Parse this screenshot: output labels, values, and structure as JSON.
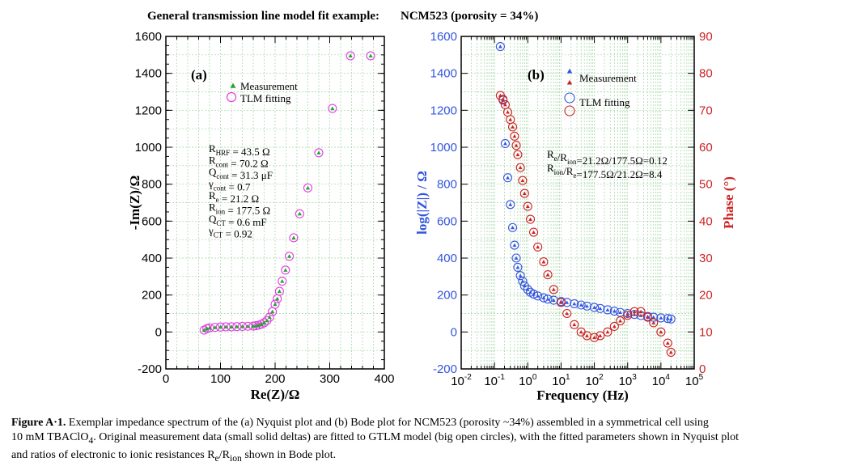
{
  "figure": {
    "title": "General transmission line model fit example:",
    "title_sample": "NCM523 (porosity = 34%)"
  },
  "caption": {
    "label": "Figure A·1.",
    "line1": "Exemplar impedance spectrum of the (a) Nyquist plot and (b) Bode plot for NCM523 (porosity ~34%) assembled in a symmetrical cell using",
    "line2a": "10 mM TBAClO",
    "line2sub": "4",
    "line2b": ". Original measurement data (small solid deltas) are fitted to GTLM model (big open circles), with the fitted parameters shown in Nyquist plot",
    "line3": "and ratios of electronic to ionic resistances R",
    "line3sub1": "e",
    "line3mid": "/R",
    "line3sub2": "ion",
    "line3end": " shown in Bode plot."
  },
  "colors": {
    "measurement_a": "#2e9e3a",
    "fit_a": "#e040e0",
    "impedance": "#3355dd",
    "phase": "#cc2222",
    "grid": "#9ed39e"
  },
  "chart_data": [
    {
      "type": "scatter",
      "panel": "(a)",
      "xlabel": "Re(Z)/Ω",
      "ylabel": "-Im(Z)/Ω",
      "xlim": [
        0,
        400
      ],
      "ylim": [
        -200,
        1600
      ],
      "xticks": [
        "0",
        "100",
        "200",
        "300",
        "400"
      ],
      "yticks": [
        "-200",
        "0",
        "200",
        "400",
        "600",
        "800",
        "1000",
        "1200",
        "1400",
        "1600"
      ],
      "grid": true,
      "legend": [
        "Measurement",
        "TLM fitting"
      ],
      "legend_position": "top-center",
      "parameters": [
        {
          "name": "R",
          "sub": "HRF",
          "value": "= 43.5 Ω"
        },
        {
          "name": "R",
          "sub": "cont",
          "value": "= 70.2 Ω"
        },
        {
          "name": "Q",
          "sub": "cont",
          "value": "= 31.3 μF"
        },
        {
          "name": "γ",
          "sub": "cont",
          "value": "= 0.7"
        },
        {
          "name": "R",
          "sub": "e",
          "value": "= 21.2 Ω"
        },
        {
          "name": "R",
          "sub": "ion",
          "value": "= 177.5 Ω"
        },
        {
          "name": "Q",
          "sub": "CT",
          "value": "= 0.6 mF"
        },
        {
          "name": "γ",
          "sub": "CT",
          "value": "= 0.92"
        }
      ],
      "series": [
        {
          "name": "Measurement",
          "marker": "triangle",
          "x": [
            70,
            75,
            80,
            90,
            100,
            110,
            120,
            130,
            140,
            150,
            160,
            165,
            170,
            175,
            180,
            185,
            190,
            195,
            200,
            204,
            208,
            213,
            219,
            226,
            234,
            245,
            260,
            280,
            305,
            338,
            375
          ],
          "y": [
            10,
            18,
            22,
            25,
            27,
            28,
            28,
            29,
            30,
            31,
            32,
            34,
            37,
            42,
            50,
            62,
            80,
            110,
            150,
            180,
            220,
            275,
            335,
            410,
            510,
            640,
            780,
            970,
            1210,
            1495,
            1495
          ]
        },
        {
          "name": "TLM fitting",
          "marker": "open-circle",
          "x": [
            70,
            75,
            80,
            90,
            100,
            110,
            120,
            130,
            140,
            150,
            160,
            165,
            170,
            175,
            180,
            185,
            190,
            195,
            200,
            204,
            208,
            213,
            219,
            226,
            234,
            245,
            260,
            280,
            305,
            338,
            375
          ],
          "y": [
            10,
            18,
            22,
            25,
            27,
            28,
            28,
            29,
            30,
            31,
            32,
            34,
            37,
            42,
            50,
            62,
            80,
            110,
            150,
            180,
            220,
            275,
            335,
            410,
            510,
            640,
            780,
            970,
            1210,
            1495,
            1495
          ]
        }
      ]
    },
    {
      "type": "scatter",
      "panel": "(b)",
      "xlabel": "Frequency (Hz)",
      "ylabel": "log(|Z|) / Ω",
      "y2label": "Phase (°)",
      "xscale": "log",
      "xlim": [
        0.01,
        100000
      ],
      "ylim": [
        -200,
        1600
      ],
      "y2lim": [
        0,
        90
      ],
      "xtick_base": "10",
      "xtick_exps": [
        "-2",
        "-1",
        "0",
        "1",
        "2",
        "3",
        "4",
        "5"
      ],
      "yticks": [
        "-200",
        "0",
        "200",
        "400",
        "600",
        "800",
        "1000",
        "1200",
        "1400",
        "1600"
      ],
      "y2ticks": [
        "0",
        "10",
        "20",
        "30",
        "40",
        "50",
        "60",
        "70",
        "80",
        "90"
      ],
      "grid": true,
      "legend": [
        "Measurement",
        "TLM fitting"
      ],
      "legend_position": "top-center",
      "ratios": [
        {
          "a": "R",
          "asub": "e",
          "b": "/R",
          "bsub": "ion",
          "value": "=21.2Ω/177.5Ω=0.12"
        },
        {
          "a": "R",
          "asub": "ion",
          "b": "/R",
          "bsub": "e",
          "value": "=177.5Ω/21.2Ω=8.4"
        }
      ],
      "series": [
        {
          "name": "|Z|",
          "axis": "left",
          "x": [
            0.15,
            0.18,
            0.21,
            0.25,
            0.3,
            0.35,
            0.4,
            0.45,
            0.5,
            0.6,
            0.7,
            0.8,
            1,
            1.2,
            1.5,
            2,
            3,
            4,
            6,
            10,
            15,
            25,
            40,
            60,
            100,
            150,
            250,
            400,
            600,
            1000,
            1600,
            2500,
            4000,
            6000,
            10000,
            16000,
            20000
          ],
          "y": [
            1545,
            1255,
            1020,
            835,
            690,
            565,
            470,
            400,
            350,
            305,
            275,
            250,
            230,
            215,
            205,
            195,
            185,
            178,
            172,
            165,
            160,
            153,
            146,
            140,
            133,
            127,
            120,
            113,
            106,
            100,
            95,
            89,
            84,
            80,
            76,
            73,
            70
          ]
        },
        {
          "name": "Phase",
          "axis": "right",
          "x": [
            0.15,
            0.18,
            0.21,
            0.25,
            0.3,
            0.35,
            0.4,
            0.45,
            0.5,
            0.6,
            0.7,
            0.8,
            1,
            1.2,
            1.5,
            2,
            3,
            4,
            6,
            10,
            15,
            25,
            40,
            60,
            100,
            150,
            250,
            400,
            600,
            1000,
            1600,
            2500,
            4000,
            6000,
            10000,
            16000,
            20000
          ],
          "y": [
            74,
            73,
            71.5,
            69.5,
            67.5,
            65.5,
            63,
            60.5,
            58,
            54.5,
            51,
            47.5,
            44,
            40.5,
            37,
            33,
            29,
            25.5,
            21.5,
            18,
            15,
            12,
            10,
            9,
            8.5,
            9,
            10,
            11.5,
            13,
            14.5,
            15.5,
            15.5,
            14,
            12.5,
            10,
            7,
            4.5
          ]
        }
      ]
    }
  ]
}
